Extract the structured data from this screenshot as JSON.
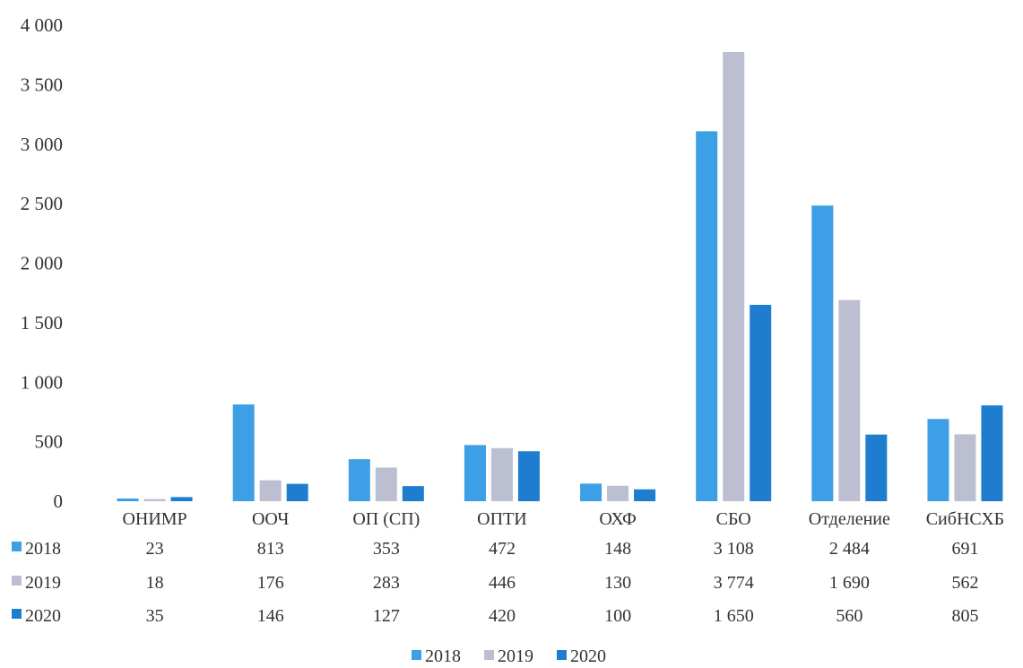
{
  "chart_data": {
    "type": "bar",
    "title": "",
    "xlabel": "",
    "ylabel": "",
    "ylim": [
      0,
      4000
    ],
    "yticks": [
      {
        "value": 0,
        "label": "0"
      },
      {
        "value": 500,
        "label": "500"
      },
      {
        "value": 1000,
        "label": "1 000"
      },
      {
        "value": 1500,
        "label": "1 500"
      },
      {
        "value": 2000,
        "label": "2 000"
      },
      {
        "value": 2500,
        "label": "2 500"
      },
      {
        "value": 3000,
        "label": "3 000"
      },
      {
        "value": 3500,
        "label": "3 500"
      },
      {
        "value": 4000,
        "label": "4 000"
      }
    ],
    "grid": false,
    "legend_position": "bottom",
    "categories": [
      "ОНИМР",
      "ООЧ",
      "ОП (СП)",
      "ОПТИ",
      "ОХФ",
      "СБО",
      "Отделение",
      "СибНСХБ"
    ],
    "series": [
      {
        "name": "2018",
        "color": "#3d9fe6",
        "values": [
          23,
          813,
          353,
          472,
          148,
          3108,
          2484,
          691
        ],
        "labels": [
          "23",
          "813",
          "353",
          "472",
          "148",
          "3 108",
          "2 484",
          "691"
        ]
      },
      {
        "name": "2019",
        "color": "#bcbfd2",
        "values": [
          18,
          176,
          283,
          446,
          130,
          3774,
          1690,
          562
        ],
        "labels": [
          "18",
          "176",
          "283",
          "446",
          "130",
          "3 774",
          "1 690",
          "562"
        ]
      },
      {
        "name": "2020",
        "color": "#1f7dcf",
        "values": [
          35,
          146,
          127,
          420,
          100,
          1650,
          560,
          805
        ],
        "labels": [
          "35",
          "146",
          "127",
          "420",
          "100",
          "1 650",
          "560",
          "805"
        ]
      }
    ]
  }
}
